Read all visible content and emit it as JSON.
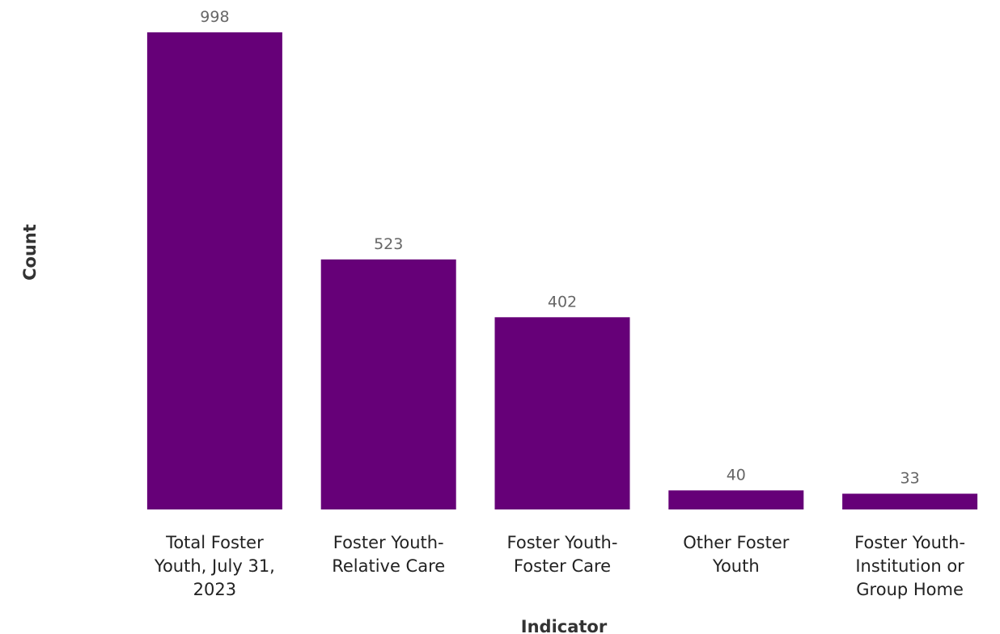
{
  "chart_data": {
    "type": "bar",
    "categories": [
      [
        "Total Foster",
        "Youth, July 31,",
        "2023"
      ],
      [
        "Foster Youth-",
        "Relative Care"
      ],
      [
        "Foster Youth-",
        "Foster Care"
      ],
      [
        "Other Foster",
        "Youth"
      ],
      [
        "Foster Youth-",
        "Institution or",
        "Group Home"
      ]
    ],
    "values": [
      998,
      523,
      402,
      40,
      33
    ],
    "value_labels": [
      "998",
      "523",
      "402",
      "40",
      "33"
    ],
    "xlabel": "Indicator",
    "ylabel": "Count",
    "ylim": [
      0,
      998
    ],
    "grid": false,
    "legend": "none",
    "bar_color": "#660078"
  }
}
